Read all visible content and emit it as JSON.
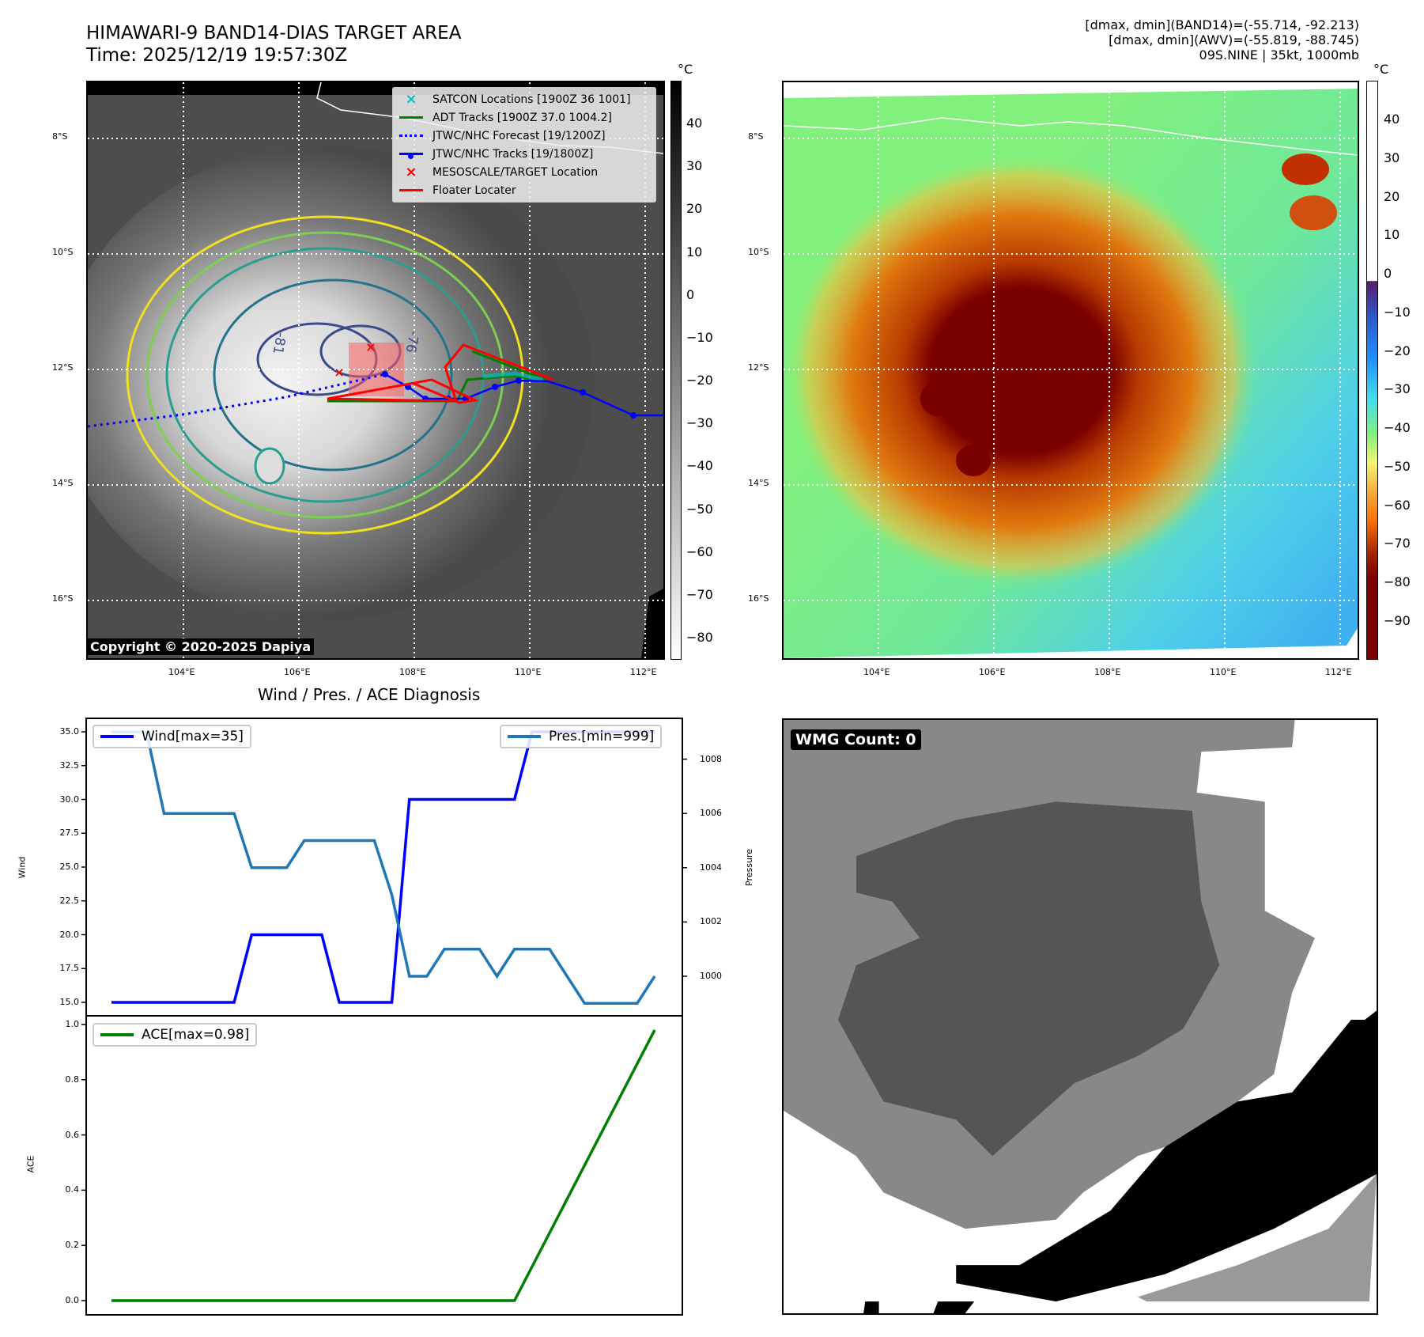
{
  "header": {
    "title_line1": "HIMAWARI-9 BAND14-DIAS TARGET AREA",
    "title_line2": "Time: 2025/12/19 19:57:30Z",
    "info_line1": "[dmax, dmin](BAND14)=(-55.714, -92.213)",
    "info_line2": "[dmax, dmin](AWV)=(-55.819, -88.745)",
    "info_line3": "09S.NINE | 35kt, 1000mb"
  },
  "map_left": {
    "legend": [
      {
        "label": "SATCON Locations [1900Z 36 1001]",
        "symbol": "x",
        "color": "#00bfbf"
      },
      {
        "label": "ADT Tracks [1900Z 37.0 1004.2]",
        "symbol": "line",
        "color": "#008000"
      },
      {
        "label": "JTWC/NHC Forecast [19/1200Z]",
        "symbol": "dotted",
        "color": "#0000ff"
      },
      {
        "label": "JTWC/NHC Tracks [19/1800Z]",
        "symbol": "line-dot",
        "color": "#0000ff"
      },
      {
        "label": "MESOSCALE/TARGET Location",
        "symbol": "x",
        "color": "#ff0000"
      },
      {
        "label": "Floater Locater",
        "symbol": "line",
        "color": "#ff0000"
      }
    ],
    "contour_labels": [
      "-81",
      "-76"
    ],
    "copyright": "Copyright © 2020-2025 Dapiya",
    "colorbar": {
      "unit": "°C",
      "ticks": [
        "40",
        "30",
        "20",
        "10",
        "0",
        "−10",
        "−20",
        "−30",
        "−40",
        "−50",
        "−60",
        "−70",
        "−80"
      ],
      "tick_values": [
        40,
        30,
        20,
        10,
        0,
        -10,
        -20,
        -30,
        -40,
        -50,
        -60,
        -70,
        -80
      ]
    }
  },
  "map_right": {
    "colorbar": {
      "unit": "°C",
      "ticks": [
        "40",
        "30",
        "20",
        "10",
        "0",
        "−10",
        "−20",
        "−30",
        "−40",
        "−50",
        "−60",
        "−70",
        "−80",
        "−90"
      ],
      "tick_values": [
        40,
        30,
        20,
        10,
        0,
        -10,
        -20,
        -30,
        -40,
        -50,
        -60,
        -70,
        -80,
        -90
      ]
    }
  },
  "map_axes": {
    "lat_labels": [
      "8°S",
      "10°S",
      "12°S",
      "14°S",
      "16°S"
    ],
    "lon_labels": [
      "104°E",
      "106°E",
      "108°E",
      "110°E",
      "112°E"
    ]
  },
  "wmg": {
    "label": "WMG Count: 0"
  },
  "chart_data": [
    {
      "type": "line",
      "title": "Wind / Pres. / ACE Diagnosis",
      "ylabel": "Wind",
      "ylabel_right": "Pressure",
      "ylim": [
        15,
        35
      ],
      "ylim_right": [
        999,
        1009
      ],
      "yticks": [
        "15.0",
        "17.5",
        "20.0",
        "22.5",
        "25.0",
        "27.5",
        "30.0",
        "32.5",
        "35.0"
      ],
      "yticks_right": [
        "1000",
        "1002",
        "1004",
        "1006",
        "1008"
      ],
      "series": [
        {
          "name": "Wind[max=35]",
          "color": "#0000ff",
          "axis": "left",
          "values": [
            15,
            15,
            15,
            15,
            15,
            15,
            15,
            15,
            20,
            20,
            20,
            20,
            20,
            15,
            15,
            15,
            15,
            30,
            30,
            30,
            30,
            30,
            30,
            30,
            35,
            35,
            35,
            35,
            35,
            35,
            35,
            35
          ]
        },
        {
          "name": "Pres.[min=999]",
          "color": "#1f77b4",
          "axis": "right",
          "values": [
            1009,
            1009,
            1009,
            1006,
            1006,
            1006,
            1006,
            1006,
            1004,
            1004,
            1004,
            1005,
            1005,
            1005,
            1005,
            1005,
            1003,
            1000,
            1000,
            1001,
            1001,
            1001,
            1000,
            1001,
            1001,
            1001,
            1000,
            999,
            999,
            999,
            999,
            1000
          ]
        }
      ]
    },
    {
      "type": "line",
      "ylabel": "ACE",
      "ylim": [
        0,
        1.0
      ],
      "yticks": [
        "0.0",
        "0.2",
        "0.4",
        "0.6",
        "0.8",
        "1.0"
      ],
      "series": [
        {
          "name": "ACE[max=0.98]",
          "color": "#008000",
          "values": [
            0,
            0,
            0,
            0,
            0,
            0,
            0,
            0,
            0,
            0,
            0,
            0,
            0,
            0,
            0,
            0,
            0,
            0,
            0,
            0,
            0,
            0,
            0,
            0,
            0.1225,
            0.245,
            0.3675,
            0.49,
            0.6125,
            0.735,
            0.8575,
            0.98
          ]
        }
      ]
    }
  ]
}
